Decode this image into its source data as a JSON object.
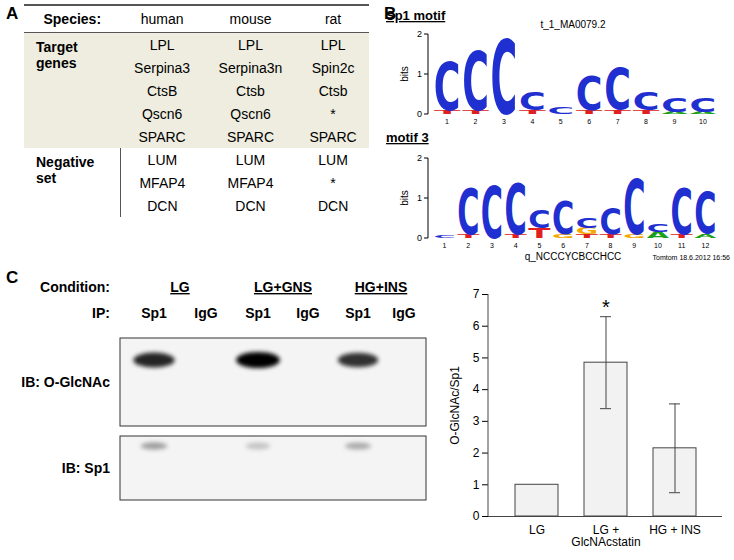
{
  "panel_labels": [
    "A",
    "B",
    "C"
  ],
  "table": {
    "header": [
      "Species:",
      "human",
      "mouse",
      "rat"
    ],
    "groups": [
      {
        "label": "Target genes",
        "rows": [
          [
            "LPL",
            "LPL",
            "LPL"
          ],
          [
            "Serpina3",
            "Serpina3n",
            "Spin2c"
          ],
          [
            "CtsB",
            "Ctsb",
            "Ctsb"
          ],
          [
            "Qscn6",
            "Qscn6",
            "*"
          ],
          [
            "SPARC",
            "SPARC",
            "SPARC"
          ]
        ]
      },
      {
        "label": "Negative set",
        "rows": [
          [
            "LUM",
            "LUM",
            "LUM"
          ],
          [
            "MFAP4",
            "MFAP4",
            "*"
          ],
          [
            "DCN",
            "DCN",
            "DCN"
          ]
        ]
      }
    ]
  },
  "logos": [
    {
      "name": "Sp1 motif",
      "title": "t_1_MA0079.2",
      "ylabel": "bits",
      "ylim": [
        0,
        2
      ],
      "yticks": [
        0,
        1,
        2
      ],
      "positions": [
        1,
        2,
        3,
        4,
        5,
        6,
        7,
        8,
        9,
        10
      ],
      "stacks": [
        [
          [
            "T",
            0.1
          ],
          [
            "C",
            1.2
          ]
        ],
        [
          [
            "T",
            0.1
          ],
          [
            "C",
            1.45
          ]
        ],
        [
          [
            "C",
            1.85
          ]
        ],
        [
          [
            "T",
            0.1
          ],
          [
            "C",
            0.45
          ]
        ],
        [
          [
            "C",
            0.15
          ]
        ],
        [
          [
            "T",
            0.1
          ],
          [
            "C",
            0.85
          ]
        ],
        [
          [
            "T",
            0.1
          ],
          [
            "C",
            1.05
          ]
        ],
        [
          [
            "T",
            0.1
          ],
          [
            "C",
            0.45
          ]
        ],
        [
          [
            "A",
            0.05
          ],
          [
            "C",
            0.35
          ]
        ],
        [
          [
            "A",
            0.05
          ],
          [
            "C",
            0.35
          ]
        ]
      ]
    },
    {
      "name": "motif 3",
      "caption": "q_NCCCYCBCCHCC",
      "note": "Tomtom 18.6.2012 16:56",
      "ylabel": "bits",
      "ylim": [
        0,
        2
      ],
      "yticks": [
        0,
        1,
        2
      ],
      "positions": [
        1,
        2,
        3,
        4,
        5,
        6,
        7,
        8,
        9,
        10,
        11,
        12
      ],
      "stacks": [
        [
          [
            "C",
            0.05
          ]
        ],
        [
          [
            "T",
            0.1
          ],
          [
            "C",
            1.15
          ]
        ],
        [
          [
            "C",
            1.3
          ]
        ],
        [
          [
            "T",
            0.1
          ],
          [
            "C",
            1.25
          ]
        ],
        [
          [
            "T",
            0.25
          ],
          [
            "C",
            0.45
          ]
        ],
        [
          [
            "G",
            0.1
          ],
          [
            "C",
            0.8
          ]
        ],
        [
          [
            "T",
            0.1
          ],
          [
            "G",
            0.15
          ],
          [
            "C",
            0.25
          ]
        ],
        [
          [
            "T",
            0.1
          ],
          [
            "C",
            0.65
          ]
        ],
        [
          [
            "G",
            0.1
          ],
          [
            "C",
            1.35
          ]
        ],
        [
          [
            "A",
            0.15
          ],
          [
            "C",
            0.2
          ]
        ],
        [
          [
            "T",
            0.1
          ],
          [
            "C",
            1.15
          ]
        ],
        [
          [
            "A",
            0.1
          ],
          [
            "C",
            1.05
          ]
        ]
      ]
    }
  ],
  "blot": {
    "condition_label": "Condition:",
    "conditions": [
      "LG",
      "LG+GNS",
      "HG+INS"
    ],
    "ip_label": "IP:",
    "lane_labels": [
      "Sp1",
      "IgG",
      "Sp1",
      "IgG",
      "Sp1",
      "IgG"
    ],
    "blots": [
      {
        "label": "IB: O-GlcNAc",
        "intensities": [
          0.85,
          0,
          1,
          0,
          0.8,
          0
        ]
      },
      {
        "label": "IB: Sp1",
        "intensities": [
          0.35,
          0,
          0.2,
          0,
          0.3,
          0
        ]
      }
    ]
  },
  "chart_data": {
    "type": "bar",
    "ylabel": "O-GlcNAc/Sp1",
    "categories": [
      "LG",
      "LG +\nGlcNAcstatin",
      "HG + INS"
    ],
    "values": [
      1,
      4.85,
      2.15
    ],
    "errors": [
      null,
      1.45,
      1.4
    ],
    "color": "#f2f2f2",
    "ylim": [
      0,
      7
    ],
    "yticks": [
      0,
      1,
      2,
      3,
      4,
      5,
      6,
      7
    ],
    "annotations": [
      {
        "label": "*",
        "x": "LG +\nGlcNAcstatin",
        "y": 6.6
      }
    ]
  }
}
